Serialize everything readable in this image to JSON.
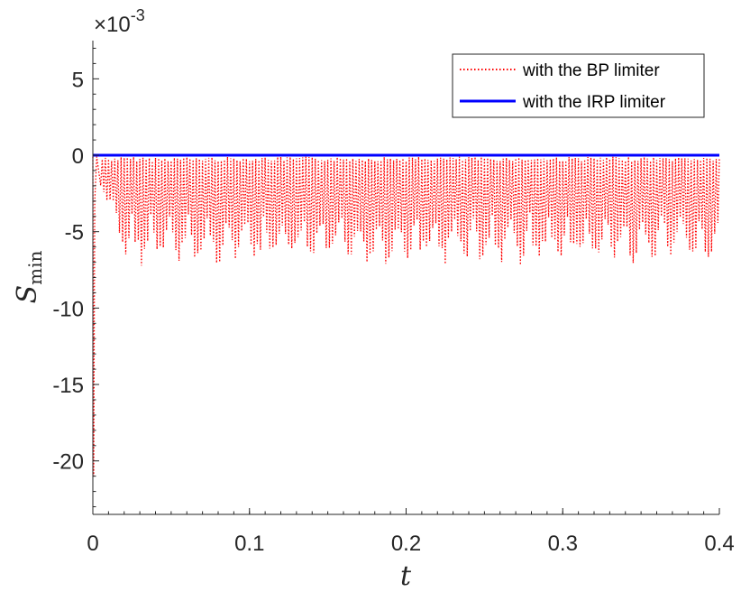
{
  "chart_data": {
    "type": "line",
    "xlabel": "t",
    "ylabel": {
      "main": "S",
      "sub": "min"
    },
    "xlim": [
      0,
      0.4
    ],
    "ylim": [
      -23.5,
      7.5
    ],
    "y_scale_exponent": {
      "base": "×10",
      "exp": "-3"
    },
    "grid": false,
    "legend_position": "top-right",
    "x_ticks": [
      {
        "value": 0,
        "label": "0"
      },
      {
        "value": 0.1,
        "label": "0.1"
      },
      {
        "value": 0.2,
        "label": "0.2"
      },
      {
        "value": 0.3,
        "label": "0.3"
      },
      {
        "value": 0.4,
        "label": "0.4"
      }
    ],
    "y_ticks": [
      {
        "value": 5,
        "label": "5"
      },
      {
        "value": 0,
        "label": "0"
      },
      {
        "value": -5,
        "label": "-5"
      },
      {
        "value": -10,
        "label": "-10"
      },
      {
        "value": -15,
        "label": "-15"
      },
      {
        "value": -20,
        "label": "-20"
      }
    ],
    "series": [
      {
        "name": "with the BP limiter",
        "color": "#ff0000",
        "style": "dotted",
        "initial_dip": {
          "t": 0.0005,
          "value": -21
        },
        "oscillation_min_range": [
          -7.3,
          -1.0
        ],
        "oscillation_max": -0.1,
        "oscillation_period_t": 0.002
      },
      {
        "name": "with the IRP limiter",
        "color": "#0000ff",
        "style": "solid",
        "values_constant": 0
      }
    ]
  }
}
